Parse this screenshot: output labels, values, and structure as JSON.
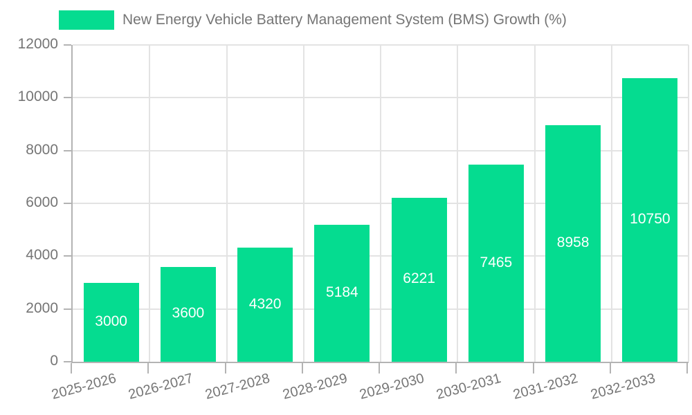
{
  "legend": {
    "label": "New Energy Vehicle Battery Management System (BMS) Growth (%)"
  },
  "chart_data": {
    "type": "bar",
    "categories": [
      "2025-2026",
      "2026-2027",
      "2027-2028",
      "2028-2029",
      "2029-2030",
      "2030-2031",
      "2031-2032",
      "2032-2033"
    ],
    "values": [
      3000,
      3600,
      4320,
      5184,
      6221,
      7465,
      8958,
      10750
    ],
    "series_name": "New Energy Vehicle Battery Management System (BMS) Growth (%)",
    "title": "",
    "xlabel": "",
    "ylabel": "",
    "ylim": [
      0,
      12000
    ],
    "yticks": [
      0,
      2000,
      4000,
      6000,
      8000,
      10000,
      12000
    ],
    "grid": true,
    "legend_position": "top-left",
    "bar_color": "#05dc90",
    "value_label_color": "#ffffff",
    "axis_color": "#b3b3b3",
    "grid_color": "#e3e3e3",
    "tick_label_color": "#757575",
    "value_labels_inside_bars": true,
    "x_label_rotation_deg": -15
  }
}
